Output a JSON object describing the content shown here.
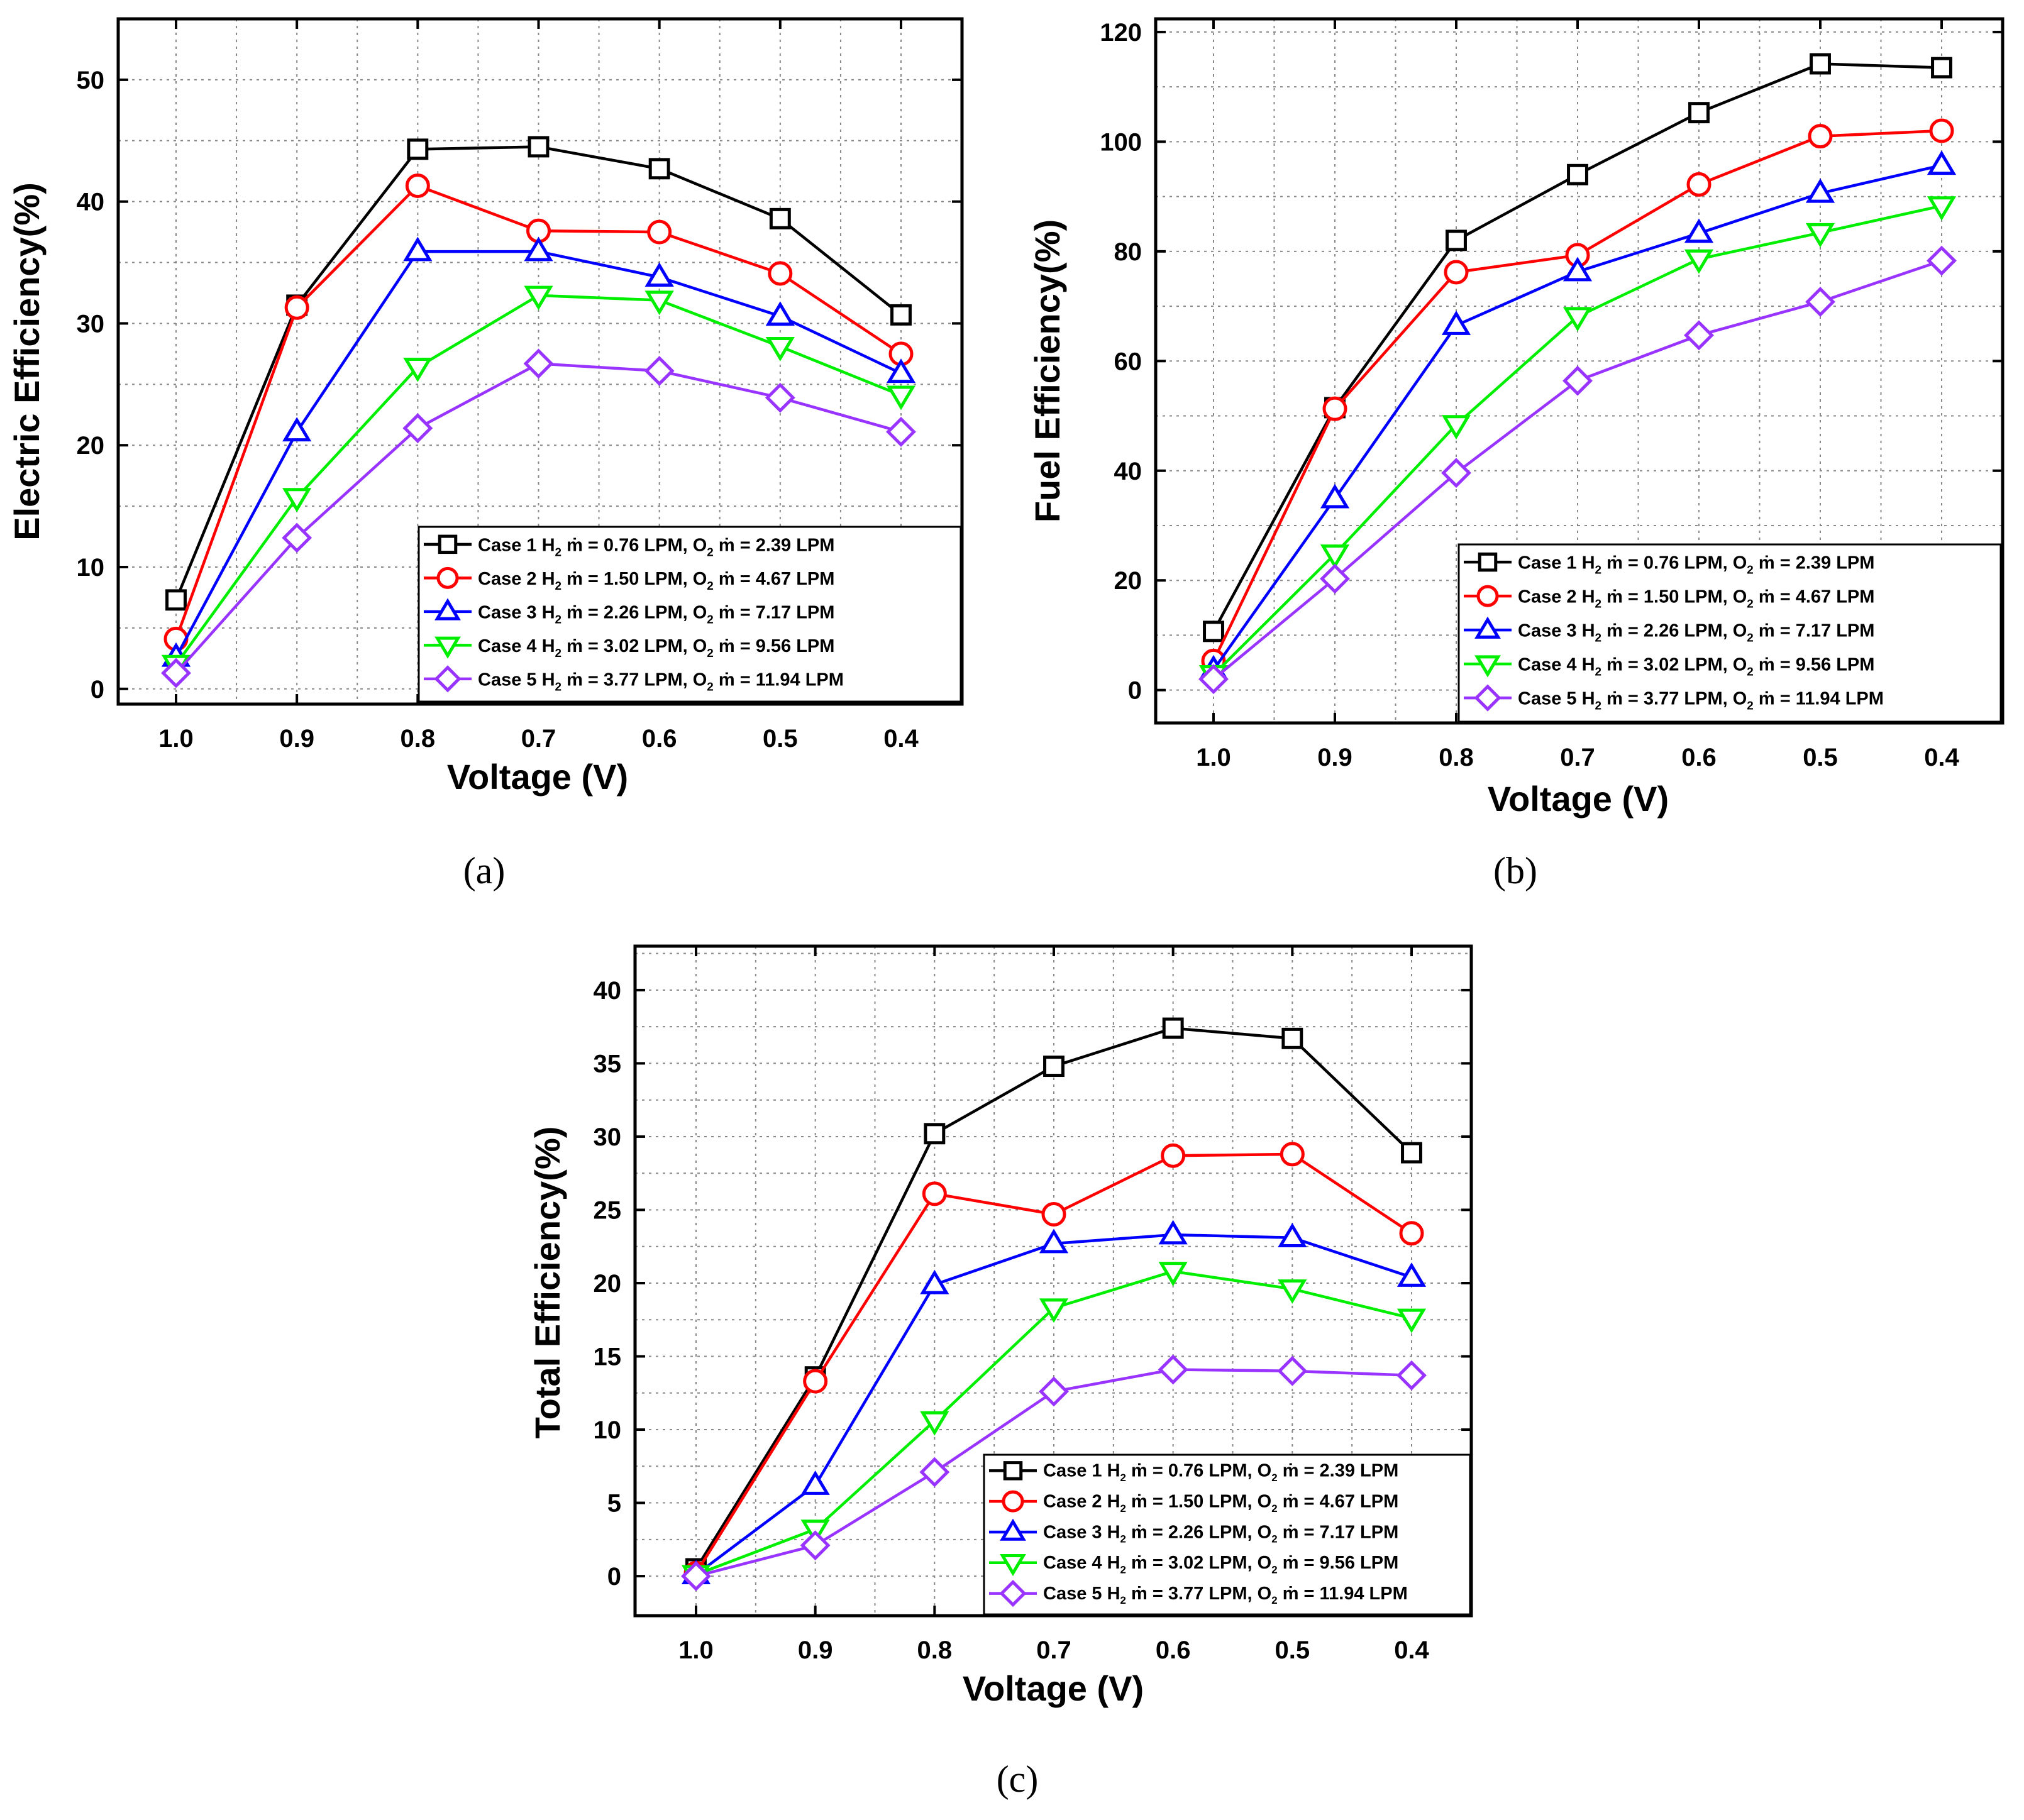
{
  "panels": [
    {
      "label": "(a)",
      "chart_data": {
        "type": "line",
        "xlabel": "Voltage (V)",
        "ylabel": "Electric Efficiency(%)",
        "x": [
          1.0,
          0.9,
          0.8,
          0.7,
          0.6,
          0.5,
          0.4
        ],
        "xtick_labels": [
          "1.0",
          "0.9",
          "0.8",
          "0.7",
          "0.6",
          "0.5",
          "0.4"
        ],
        "x_reversed": true,
        "ylim": [
          0,
          50
        ],
        "yticks": [
          0,
          10,
          20,
          30,
          40,
          50
        ],
        "ymax_view": 55,
        "grid": true,
        "legend_position": "bottom-right",
        "series": [
          {
            "name": "Case 1 H₂ ṁ = 0.76 LPM, O₂ ṁ = 2.39 LPM",
            "color": "#000000",
            "marker": "square",
            "values": [
              7.3,
              31.5,
              44.3,
              44.5,
              42.7,
              38.6,
              30.7
            ]
          },
          {
            "name": "Case 2 H₂ ṁ = 1.50 LPM, O₂ ṁ = 4.67 LPM",
            "color": "#ff0000",
            "marker": "circle",
            "values": [
              4.1,
              31.3,
              41.3,
              37.6,
              37.5,
              34.1,
              27.5
            ]
          },
          {
            "name": "Case 3 H₂ ṁ = 2.26 LPM, O₂ ṁ = 7.17 LPM",
            "color": "#0000ff",
            "marker": "triangle-up",
            "values": [
              2.6,
              21.1,
              35.9,
              35.9,
              33.8,
              30.6,
              25.9
            ]
          },
          {
            "name": "Case 4 H₂ ṁ = 3.02 LPM, O₂ ṁ = 9.56 LPM",
            "color": "#00ee00",
            "marker": "triangle-down",
            "values": [
              2.0,
              15.7,
              26.4,
              32.3,
              31.9,
              28.1,
              24.1
            ]
          },
          {
            "name": "Case 5 H₂ ṁ = 3.77 LPM, O₂ ṁ = 11.94 LPM",
            "color": "#9933ff",
            "marker": "diamond",
            "values": [
              1.3,
              12.4,
              21.4,
              26.7,
              26.1,
              23.9,
              21.1
            ]
          }
        ]
      }
    },
    {
      "label": "(b)",
      "chart_data": {
        "type": "line",
        "xlabel": "Voltage (V)",
        "ylabel": "Fuel Efficiency(%)",
        "x": [
          1.0,
          0.9,
          0.8,
          0.7,
          0.6,
          0.5,
          0.4
        ],
        "xtick_labels": [
          "1.0",
          "0.9",
          "0.8",
          "0.7",
          "0.6",
          "0.5",
          "0.4"
        ],
        "x_reversed": true,
        "ylim": [
          0,
          120
        ],
        "yticks": [
          0,
          20,
          40,
          60,
          80,
          100,
          120
        ],
        "ymin_view": -6,
        "grid": true,
        "legend_position": "bottom-right",
        "series": [
          {
            "name": "Case 1 H₂ ṁ = 0.76 LPM, O₂ ṁ = 2.39 LPM",
            "color": "#000000",
            "marker": "square",
            "values": [
              10.7,
              51.5,
              82.0,
              94.0,
              105.3,
              114.2,
              113.5
            ]
          },
          {
            "name": "Case 2 H₂ ṁ = 1.50 LPM, O₂ ṁ = 4.67 LPM",
            "color": "#ff0000",
            "marker": "circle",
            "values": [
              5.3,
              51.3,
              76.2,
              79.3,
              92.2,
              101.0,
              102.0
            ]
          },
          {
            "name": "Case 3 H₂ ṁ = 2.26 LPM, O₂ ṁ = 7.17 LPM",
            "color": "#0000ff",
            "marker": "triangle-up",
            "values": [
              3.7,
              34.9,
              66.5,
              76.3,
              83.3,
              90.6,
              95.7
            ]
          },
          {
            "name": "Case 4 H₂ ṁ = 3.02 LPM, O₂ ṁ = 9.56 LPM",
            "color": "#00ee00",
            "marker": "triangle-down",
            "values": [
              2.8,
              24.8,
              48.4,
              68.1,
              78.6,
              83.4,
              88.3
            ]
          },
          {
            "name": "Case 5 H₂ ṁ = 3.77 LPM, O₂ ṁ = 11.94 LPM",
            "color": "#9933ff",
            "marker": "diamond",
            "values": [
              2.0,
              20.3,
              39.6,
              56.4,
              64.7,
              70.8,
              78.3
            ]
          }
        ]
      }
    },
    {
      "label": "(c)",
      "chart_data": {
        "type": "line",
        "xlabel": "Voltage (V)",
        "ylabel": "Total Efficiency(%)",
        "x": [
          1.0,
          0.9,
          0.8,
          0.7,
          0.6,
          0.5,
          0.4
        ],
        "xtick_labels": [
          "1.0",
          "0.9",
          "0.8",
          "0.7",
          "0.6",
          "0.5",
          "0.4"
        ],
        "x_reversed": true,
        "ylim": [
          0,
          40
        ],
        "yticks": [
          0,
          5,
          10,
          15,
          20,
          25,
          30,
          35,
          40
        ],
        "ymin_view": -2.7,
        "ymax_view": 43,
        "grid": true,
        "legend_position": "bottom-right",
        "series": [
          {
            "name": "Case 1 H₂ ṁ = 0.76 LPM, O₂ ṁ = 2.39 LPM",
            "color": "#000000",
            "marker": "square",
            "values": [
              0.5,
              13.6,
              30.2,
              34.8,
              37.4,
              36.7,
              28.9
            ]
          },
          {
            "name": "Case 2 H₂ ṁ = 1.50 LPM, O₂ ṁ = 4.67 LPM",
            "color": "#ff0000",
            "marker": "circle",
            "values": [
              0.2,
              13.3,
              26.1,
              24.7,
              28.7,
              28.8,
              23.4
            ]
          },
          {
            "name": "Case 3 H₂ ṁ = 2.26 LPM, O₂ ṁ = 7.17 LPM",
            "color": "#0000ff",
            "marker": "triangle-up",
            "values": [
              0.1,
              6.2,
              19.9,
              22.7,
              23.3,
              23.1,
              20.4
            ]
          },
          {
            "name": "Case 4 H₂ ṁ = 3.02 LPM, O₂ ṁ = 9.56 LPM",
            "color": "#00ee00",
            "marker": "triangle-down",
            "values": [
              0.1,
              3.2,
              10.6,
              18.3,
              20.8,
              19.6,
              17.6
            ]
          },
          {
            "name": "Case 5 H₂ ṁ = 3.77 LPM, O₂ ṁ = 11.94 LPM",
            "color": "#9933ff",
            "marker": "diamond",
            "values": [
              0.0,
              2.1,
              7.1,
              12.6,
              14.1,
              14.0,
              13.7
            ]
          }
        ]
      }
    }
  ]
}
